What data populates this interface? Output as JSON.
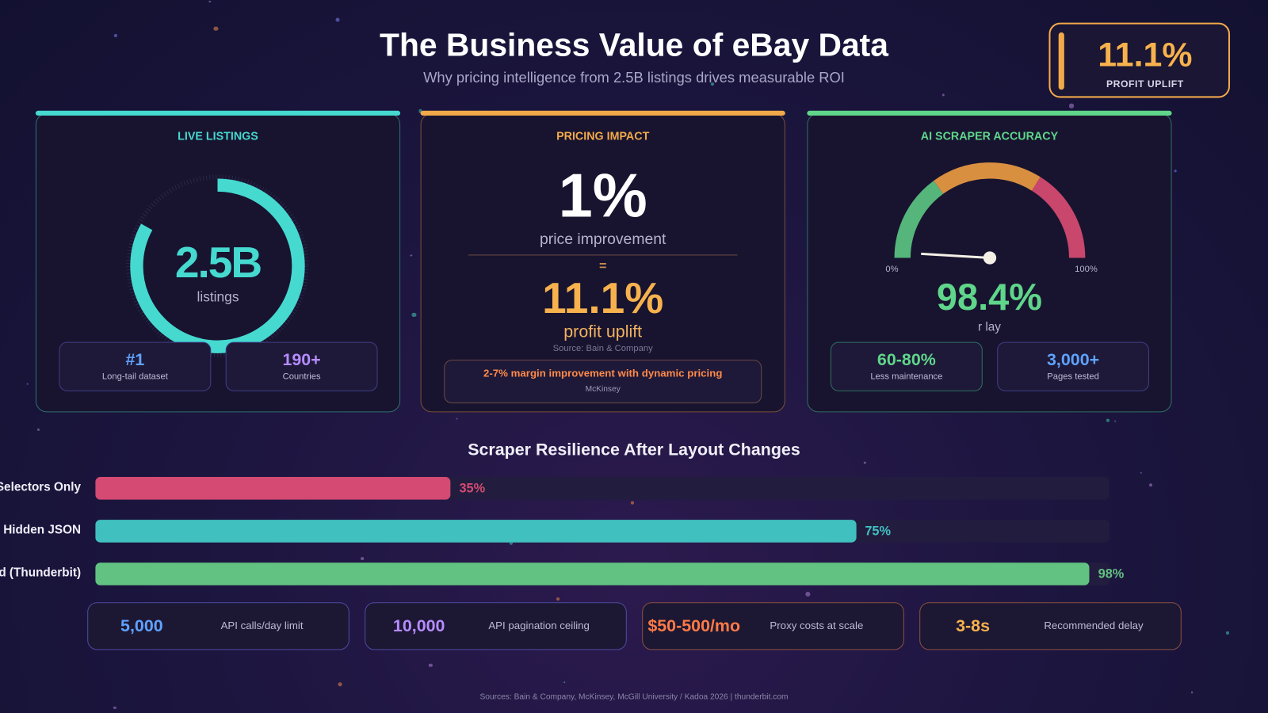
{
  "header": {
    "title": "The Business Value of eBay Data",
    "subtitle": "Why pricing intelligence from 2.5B listings drives measurable ROI"
  },
  "badge": {
    "value": "11.1%",
    "label": "PROFIT UPLIFT",
    "color": "#f7b24d"
  },
  "cards": {
    "listings": {
      "heading": "LIVE LISTINGS",
      "value": "2.5B",
      "unit": "listings",
      "ring_fill_percent": 83,
      "color": "#45d9d0",
      "stats": [
        {
          "value": "#1",
          "label": "Long-tail dataset",
          "color": "#5fa2ff"
        },
        {
          "value": "190+",
          "label": "Countries",
          "color": "#b68cff"
        }
      ]
    },
    "pricing": {
      "heading": "PRICING IMPACT",
      "value": "1%",
      "value_label": "price improvement",
      "equals": "=",
      "result": "11.1%",
      "result_label": "profit uplift",
      "source": "Source: Bain & Company",
      "color": "#f7b24d",
      "callout": {
        "text": "2-7% margin improvement with dynamic pricing",
        "source": "McKinsey",
        "color": "#ff8a4a"
      }
    },
    "accuracy": {
      "heading": "AI SCRAPER ACCURACY",
      "gauge_min": "0%",
      "gauge_max": "100%",
      "value": "98.4%",
      "value_label_fragment": "r lay",
      "color": "#5fd68a",
      "gauge_colors": {
        "low": "#55b57a",
        "mid": "#d98f40",
        "high": "#c9476c"
      },
      "stats": [
        {
          "value": "60-80%",
          "label": "Less maintenance",
          "color": "#5fd68a"
        },
        {
          "value": "3,000+",
          "label": "Pages tested",
          "color": "#5fa2ff"
        }
      ]
    }
  },
  "chart_data": {
    "type": "bar",
    "title": "Scraper Resilience After Layout Changes",
    "orientation": "horizontal",
    "xlim": [
      0,
      100
    ],
    "categories": [
      "Selectors Only",
      "Hidden JSON",
      "d (Thunderbit)"
    ],
    "values": [
      35,
      75,
      98
    ],
    "labels": [
      "35%",
      "75%",
      "98%"
    ],
    "colors": [
      "#d44a72",
      "#41c0c0",
      "#62c282"
    ]
  },
  "stats": [
    {
      "value": "5,000",
      "label": "API calls/day limit",
      "color": "#5fa2ff",
      "border": "#4e4aa0"
    },
    {
      "value": "10,000",
      "label": "API pagination ceiling",
      "color": "#b68cff",
      "border": "#4e4aa0"
    },
    {
      "value": "$50-500/mo",
      "label": "Proxy costs at scale",
      "color": "#ff7a45",
      "border": "#8a5040"
    },
    {
      "value": "3-8s",
      "label": "Recommended delay",
      "color": "#f7b24d",
      "border": "#8a5040"
    }
  ],
  "footer": "Sources: Bain & Company, McKinsey, McGill University / Kadoa 2026  |  thunderbit.com"
}
